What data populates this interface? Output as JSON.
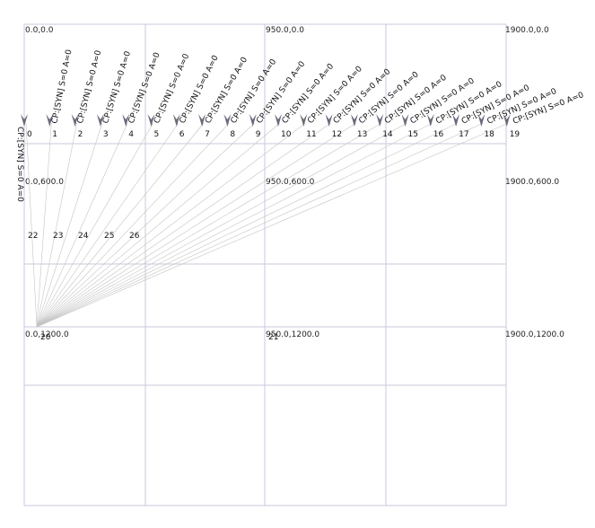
{
  "colors": {
    "grid": "#c9c9dd",
    "edge": "#c4c4c4",
    "arrow": "#6a6a7a",
    "text": "#111111"
  },
  "coordinate_labels": [
    "0.0,0.0",
    "950.0,0.0",
    "1900.0,0.0",
    "0.0,600.0",
    "950.0,600.0",
    "1900.0,600.0",
    "0.0,1200.0",
    "950.0,1200.0",
    "1900.0,1200.0"
  ],
  "top_nodes": [
    {
      "id": "0",
      "label": "CP:[SYN] S=0 A=0"
    },
    {
      "id": "1",
      "label": "CP:[SYN] S=0 A=0"
    },
    {
      "id": "2",
      "label": "CP:[SYN] S=0 A=0"
    },
    {
      "id": "3",
      "label": "CP:[SYN] S=0 A=0"
    },
    {
      "id": "4",
      "label": "CP:[SYN] S=0 A=0"
    },
    {
      "id": "5",
      "label": "CP:[SYN] S=0 A=0"
    },
    {
      "id": "6",
      "label": "CP:[SYN] S=0 A=0"
    },
    {
      "id": "7",
      "label": "CP:[SYN] S=0 A=0"
    },
    {
      "id": "8",
      "label": "CP:[SYN] S=0 A=0"
    },
    {
      "id": "9",
      "label": "CP:[SYN] S=0 A=0"
    },
    {
      "id": "10",
      "label": "CP:[SYN] S=0 A=0"
    },
    {
      "id": "11",
      "label": "CP:[SYN] S=0 A=0"
    },
    {
      "id": "12",
      "label": "CP:[SYN] S=0 A=0"
    },
    {
      "id": "13",
      "label": "CP:[SYN] S=0 A=0"
    },
    {
      "id": "14",
      "label": "CP:[SYN] S=0 A=0"
    },
    {
      "id": "15",
      "label": "CP:[SYN] S=0 A=0"
    },
    {
      "id": "16",
      "label": "CP:[SYN] S=0 A=0"
    },
    {
      "id": "17",
      "label": "CP:[SYN] S=0 A=0"
    },
    {
      "id": "18",
      "label": "CP:[SYN] S=0 A=0"
    },
    {
      "id": "19",
      "label": "CP:[SYN] S=0 A=0"
    }
  ],
  "mid_nodes": [
    "22",
    "23",
    "24",
    "25",
    "26"
  ],
  "hub_node": "20",
  "center_node": "21"
}
